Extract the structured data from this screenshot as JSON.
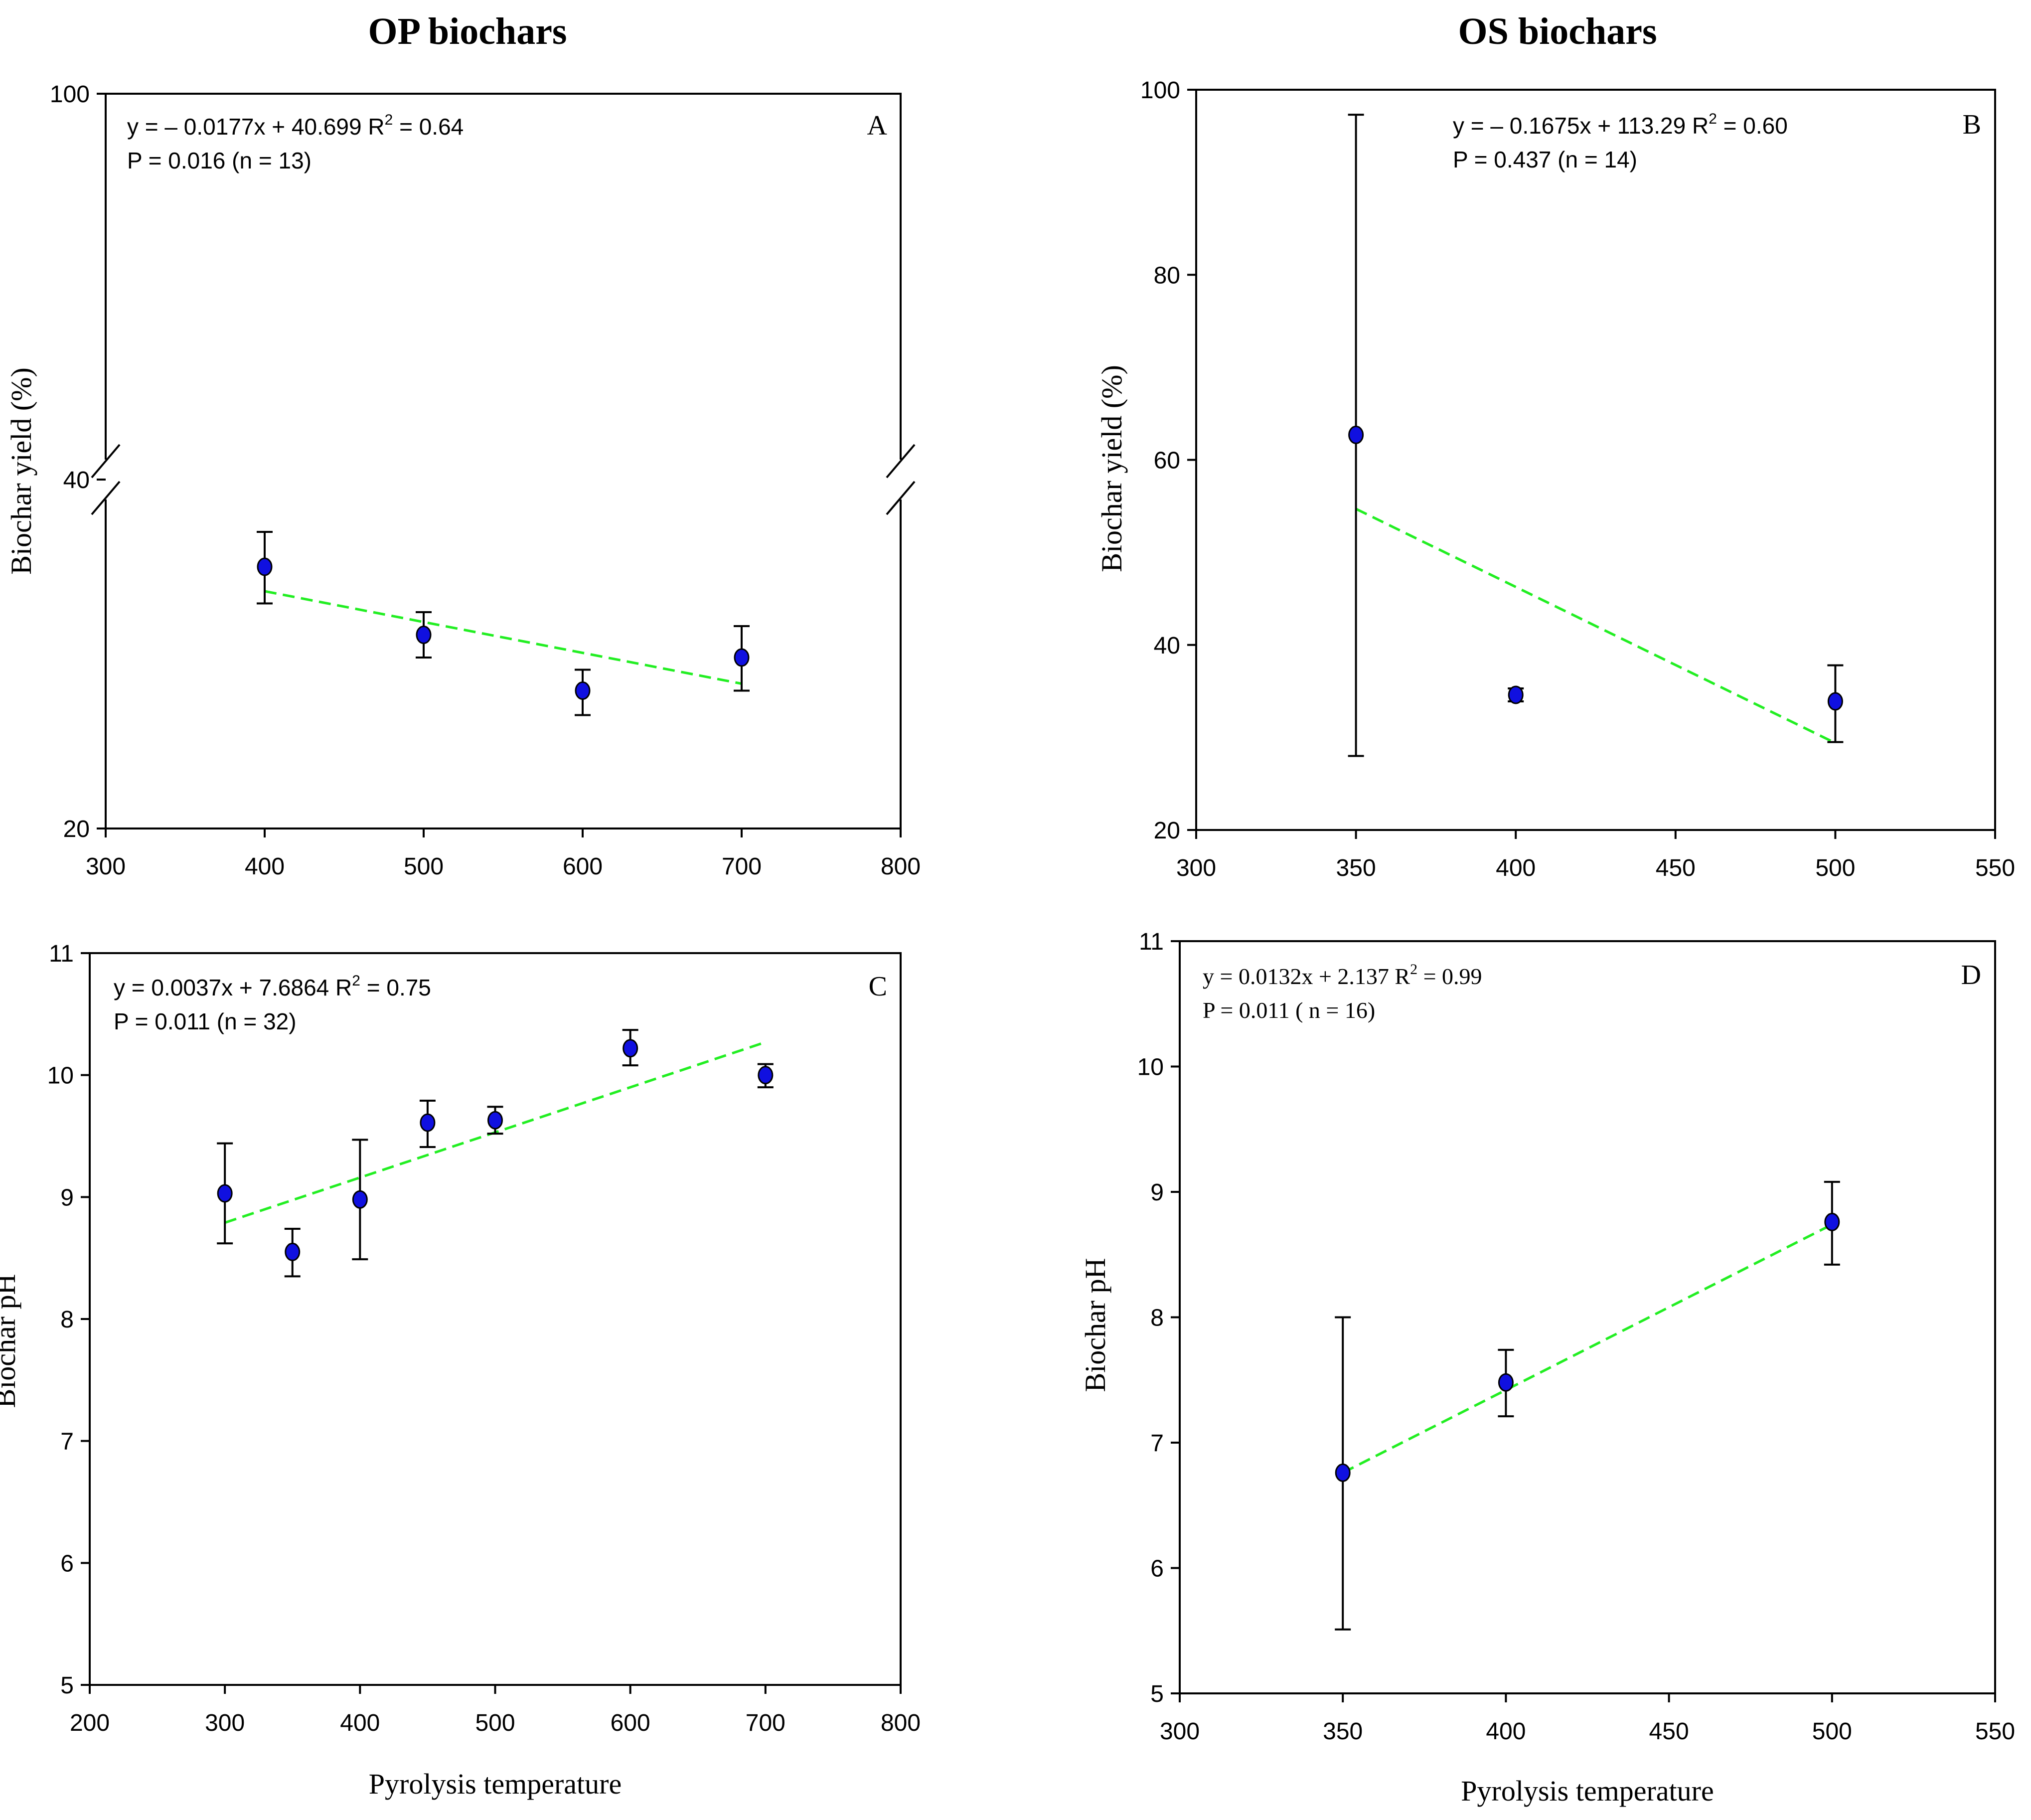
{
  "titles": {
    "left": "OP biochars",
    "right": "OS biochars"
  },
  "colors": {
    "point": "#1010e0",
    "fit": "#22ee22",
    "axis": "#000000"
  },
  "chart_data": [
    {
      "panel": "A",
      "type": "scatter",
      "title": "OP biochars",
      "xlabel": "",
      "ylabel": "Biochar yield (%)",
      "xlim": [
        300,
        800
      ],
      "ylim": [
        20,
        100
      ],
      "axis_break": [
        40,
        100
      ],
      "xticks": [
        "300",
        "400",
        "500",
        "600",
        "700",
        "800"
      ],
      "yticks": [
        "20",
        "40",
        "100"
      ],
      "points": [
        {
          "x": 400,
          "y": 35.0,
          "lo": 32.9,
          "hi": 37.0
        },
        {
          "x": 500,
          "y": 31.1,
          "lo": 29.8,
          "hi": 32.4
        },
        {
          "x": 600,
          "y": 27.9,
          "lo": 26.5,
          "hi": 29.1
        },
        {
          "x": 700,
          "y": 29.8,
          "lo": 27.9,
          "hi": 31.6
        }
      ],
      "fit": {
        "x": [
          400,
          700
        ],
        "y": [
          33.6,
          28.3
        ]
      },
      "equation": "y = – 0.0177x + 40.699 R",
      "r2": " = 0.64",
      "stats": "P = 0.016 (n = 13)"
    },
    {
      "panel": "B",
      "type": "scatter",
      "title": "OS biochars",
      "xlabel": "",
      "ylabel": "Biochar yield (%)",
      "xlim": [
        300,
        550
      ],
      "ylim": [
        20,
        100
      ],
      "xticks": [
        "300",
        "350",
        "400",
        "450",
        "500",
        "550"
      ],
      "yticks": [
        "20",
        "40",
        "60",
        "80",
        "100"
      ],
      "points": [
        {
          "x": 350,
          "y": 62.7,
          "lo": 28.0,
          "hi": 97.3
        },
        {
          "x": 400,
          "y": 34.6,
          "lo": 33.9,
          "hi": 35.3
        },
        {
          "x": 500,
          "y": 33.9,
          "lo": 29.5,
          "hi": 37.8
        }
      ],
      "fit": {
        "x": [
          350,
          500
        ],
        "y": [
          54.7,
          29.4
        ]
      },
      "equation": "y = – 0.1675x + 113.29 R",
      "r2": " = 0.60",
      "stats": "P = 0.437 (n = 14)"
    },
    {
      "panel": "C",
      "type": "scatter",
      "xlabel": "Pyrolysis temperature",
      "ylabel": "Biochar pH",
      "xlim": [
        200,
        800
      ],
      "ylim": [
        5,
        11
      ],
      "xticks": [
        "200",
        "300",
        "400",
        "500",
        "600",
        "700",
        "800"
      ],
      "yticks": [
        "5",
        "6",
        "7",
        "8",
        "9",
        "10",
        "11"
      ],
      "points": [
        {
          "x": 300,
          "y": 9.03,
          "lo": 8.62,
          "hi": 9.44
        },
        {
          "x": 350,
          "y": 8.55,
          "lo": 8.35,
          "hi": 8.74
        },
        {
          "x": 400,
          "y": 8.98,
          "lo": 8.49,
          "hi": 9.47
        },
        {
          "x": 450,
          "y": 9.61,
          "lo": 9.41,
          "hi": 9.79
        },
        {
          "x": 500,
          "y": 9.63,
          "lo": 9.52,
          "hi": 9.74
        },
        {
          "x": 600,
          "y": 10.22,
          "lo": 10.08,
          "hi": 10.37
        },
        {
          "x": 700,
          "y": 10.0,
          "lo": 9.9,
          "hi": 10.09
        }
      ],
      "fit": {
        "x": [
          300,
          700
        ],
        "y": [
          8.79,
          10.27
        ]
      },
      "equation": "y = 0.0037x + 7.6864 R",
      "r2": " = 0.75",
      "stats": "P = 0.011 (n = 32)"
    },
    {
      "panel": "D",
      "type": "scatter",
      "xlabel": "Pyrolysis temperature",
      "ylabel": "Biochar pH",
      "xlim": [
        300,
        550
      ],
      "ylim": [
        5,
        11
      ],
      "xticks": [
        "300",
        "350",
        "400",
        "450",
        "500",
        "550"
      ],
      "yticks": [
        "5",
        "6",
        "7",
        "8",
        "9",
        "10",
        "11"
      ],
      "points": [
        {
          "x": 350,
          "y": 6.76,
          "lo": 5.51,
          "hi": 8.0
        },
        {
          "x": 400,
          "y": 7.48,
          "lo": 7.21,
          "hi": 7.74
        },
        {
          "x": 500,
          "y": 8.76,
          "lo": 8.42,
          "hi": 9.08
        }
      ],
      "fit": {
        "x": [
          350,
          500
        ],
        "y": [
          6.76,
          8.74
        ]
      },
      "equation": "y = 0.0132x + 2.137 R",
      "r2": " = 0.99",
      "stats": "P = 0.011 ( n = 16)"
    }
  ]
}
